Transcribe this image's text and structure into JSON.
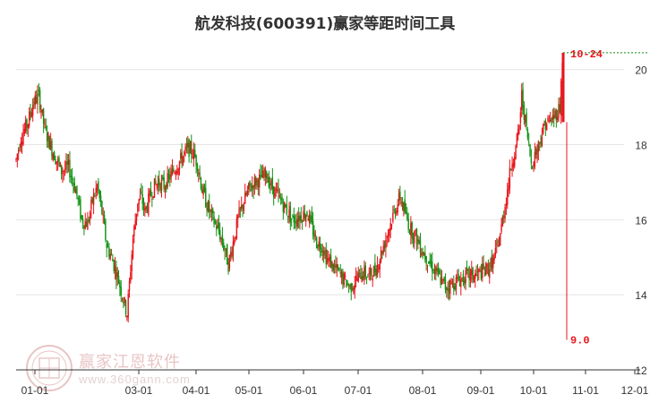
{
  "title": "航发科技(600391)赢家等距时间工具",
  "watermark": {
    "brand": "赢家江恩软件",
    "url": "www.360gann.com",
    "seal_text": "江恩赢家"
  },
  "chart_data": {
    "type": "candlestick",
    "x_ticks": [
      "01-01",
      "03-01",
      "04-01",
      "05-01",
      "06-01",
      "07-01",
      "08-01",
      "09-01",
      "10-01",
      "11-01",
      "12-01"
    ],
    "y_ticks": [
      "20",
      "18",
      "16",
      "14",
      "12"
    ],
    "ylim": [
      12,
      20.9
    ],
    "annotations": {
      "high_label": "10-24",
      "high_value": 20.45,
      "low_label": "9.0",
      "low_value": 12.8
    },
    "colors": {
      "up": "#e8141b",
      "down": "#109010",
      "grid": "#e4e4e4",
      "axis": "#333333",
      "annotation": "#e8141b"
    },
    "trend": [
      [
        0,
        17.6
      ],
      [
        4,
        18.2
      ],
      [
        10,
        18.6
      ],
      [
        14,
        19.1
      ],
      [
        19,
        19.3
      ],
      [
        24,
        18.4
      ],
      [
        31,
        17.8
      ],
      [
        38,
        17.3
      ],
      [
        44,
        17.4
      ],
      [
        50,
        16.8
      ],
      [
        55,
        16.0
      ],
      [
        60,
        15.9
      ],
      [
        64,
        16.5
      ],
      [
        68,
        16.9
      ],
      [
        72,
        16.2
      ],
      [
        76,
        15.3
      ],
      [
        80,
        15.0
      ],
      [
        85,
        14.5
      ],
      [
        89,
        14.0
      ],
      [
        93,
        13.5
      ],
      [
        95,
        14.3
      ],
      [
        98,
        15.5
      ],
      [
        102,
        16.5
      ],
      [
        105,
        16.6
      ],
      [
        108,
        16.2
      ],
      [
        112,
        16.6
      ],
      [
        116,
        16.9
      ],
      [
        120,
        17.0
      ],
      [
        124,
        16.9
      ],
      [
        128,
        17.1
      ],
      [
        134,
        17.4
      ],
      [
        138,
        17.6
      ],
      [
        144,
        17.9
      ],
      [
        148,
        17.8
      ],
      [
        152,
        17.5
      ],
      [
        156,
        16.8
      ],
      [
        160,
        16.4
      ],
      [
        165,
        16.0
      ],
      [
        170,
        15.7
      ],
      [
        175,
        15.2
      ],
      [
        178,
        14.8
      ],
      [
        182,
        15.4
      ],
      [
        186,
        16.0
      ],
      [
        190,
        16.4
      ],
      [
        195,
        16.8
      ],
      [
        200,
        17.0
      ],
      [
        205,
        17.1
      ],
      [
        210,
        17.2
      ],
      [
        214,
        16.9
      ],
      [
        218,
        16.7
      ],
      [
        222,
        16.5
      ],
      [
        226,
        16.3
      ],
      [
        232,
        16.0
      ],
      [
        238,
        16.1
      ],
      [
        244,
        16.2
      ],
      [
        248,
        15.8
      ],
      [
        252,
        15.4
      ],
      [
        257,
        15.3
      ],
      [
        260,
        15.0
      ],
      [
        265,
        14.8
      ],
      [
        270,
        14.6
      ],
      [
        275,
        14.4
      ],
      [
        280,
        14.2
      ],
      [
        285,
        14.4
      ],
      [
        290,
        14.6
      ],
      [
        296,
        14.5
      ],
      [
        302,
        14.7
      ],
      [
        308,
        15.3
      ],
      [
        313,
        15.8
      ],
      [
        318,
        16.3
      ],
      [
        322,
        16.6
      ],
      [
        326,
        16.2
      ],
      [
        330,
        15.8
      ],
      [
        336,
        15.5
      ],
      [
        342,
        15.1
      ],
      [
        348,
        14.8
      ],
      [
        354,
        14.5
      ],
      [
        360,
        14.2
      ],
      [
        366,
        14.3
      ],
      [
        372,
        14.4
      ],
      [
        378,
        14.5
      ],
      [
        384,
        14.5
      ],
      [
        390,
        14.6
      ],
      [
        396,
        14.7
      ],
      [
        400,
        14.9
      ],
      [
        404,
        15.3
      ],
      [
        407,
        15.8
      ],
      [
        410,
        16.4
      ],
      [
        413,
        17.0
      ],
      [
        416,
        17.6
      ],
      [
        419,
        17.9
      ],
      [
        422,
        18.5
      ],
      [
        424,
        19.3
      ],
      [
        428,
        18.4
      ],
      [
        432,
        17.5
      ],
      [
        436,
        17.8
      ],
      [
        440,
        18.2
      ],
      [
        444,
        18.6
      ],
      [
        448,
        18.6
      ],
      [
        452,
        18.8
      ],
      [
        456,
        19.0
      ],
      [
        458,
        20.3
      ]
    ]
  }
}
